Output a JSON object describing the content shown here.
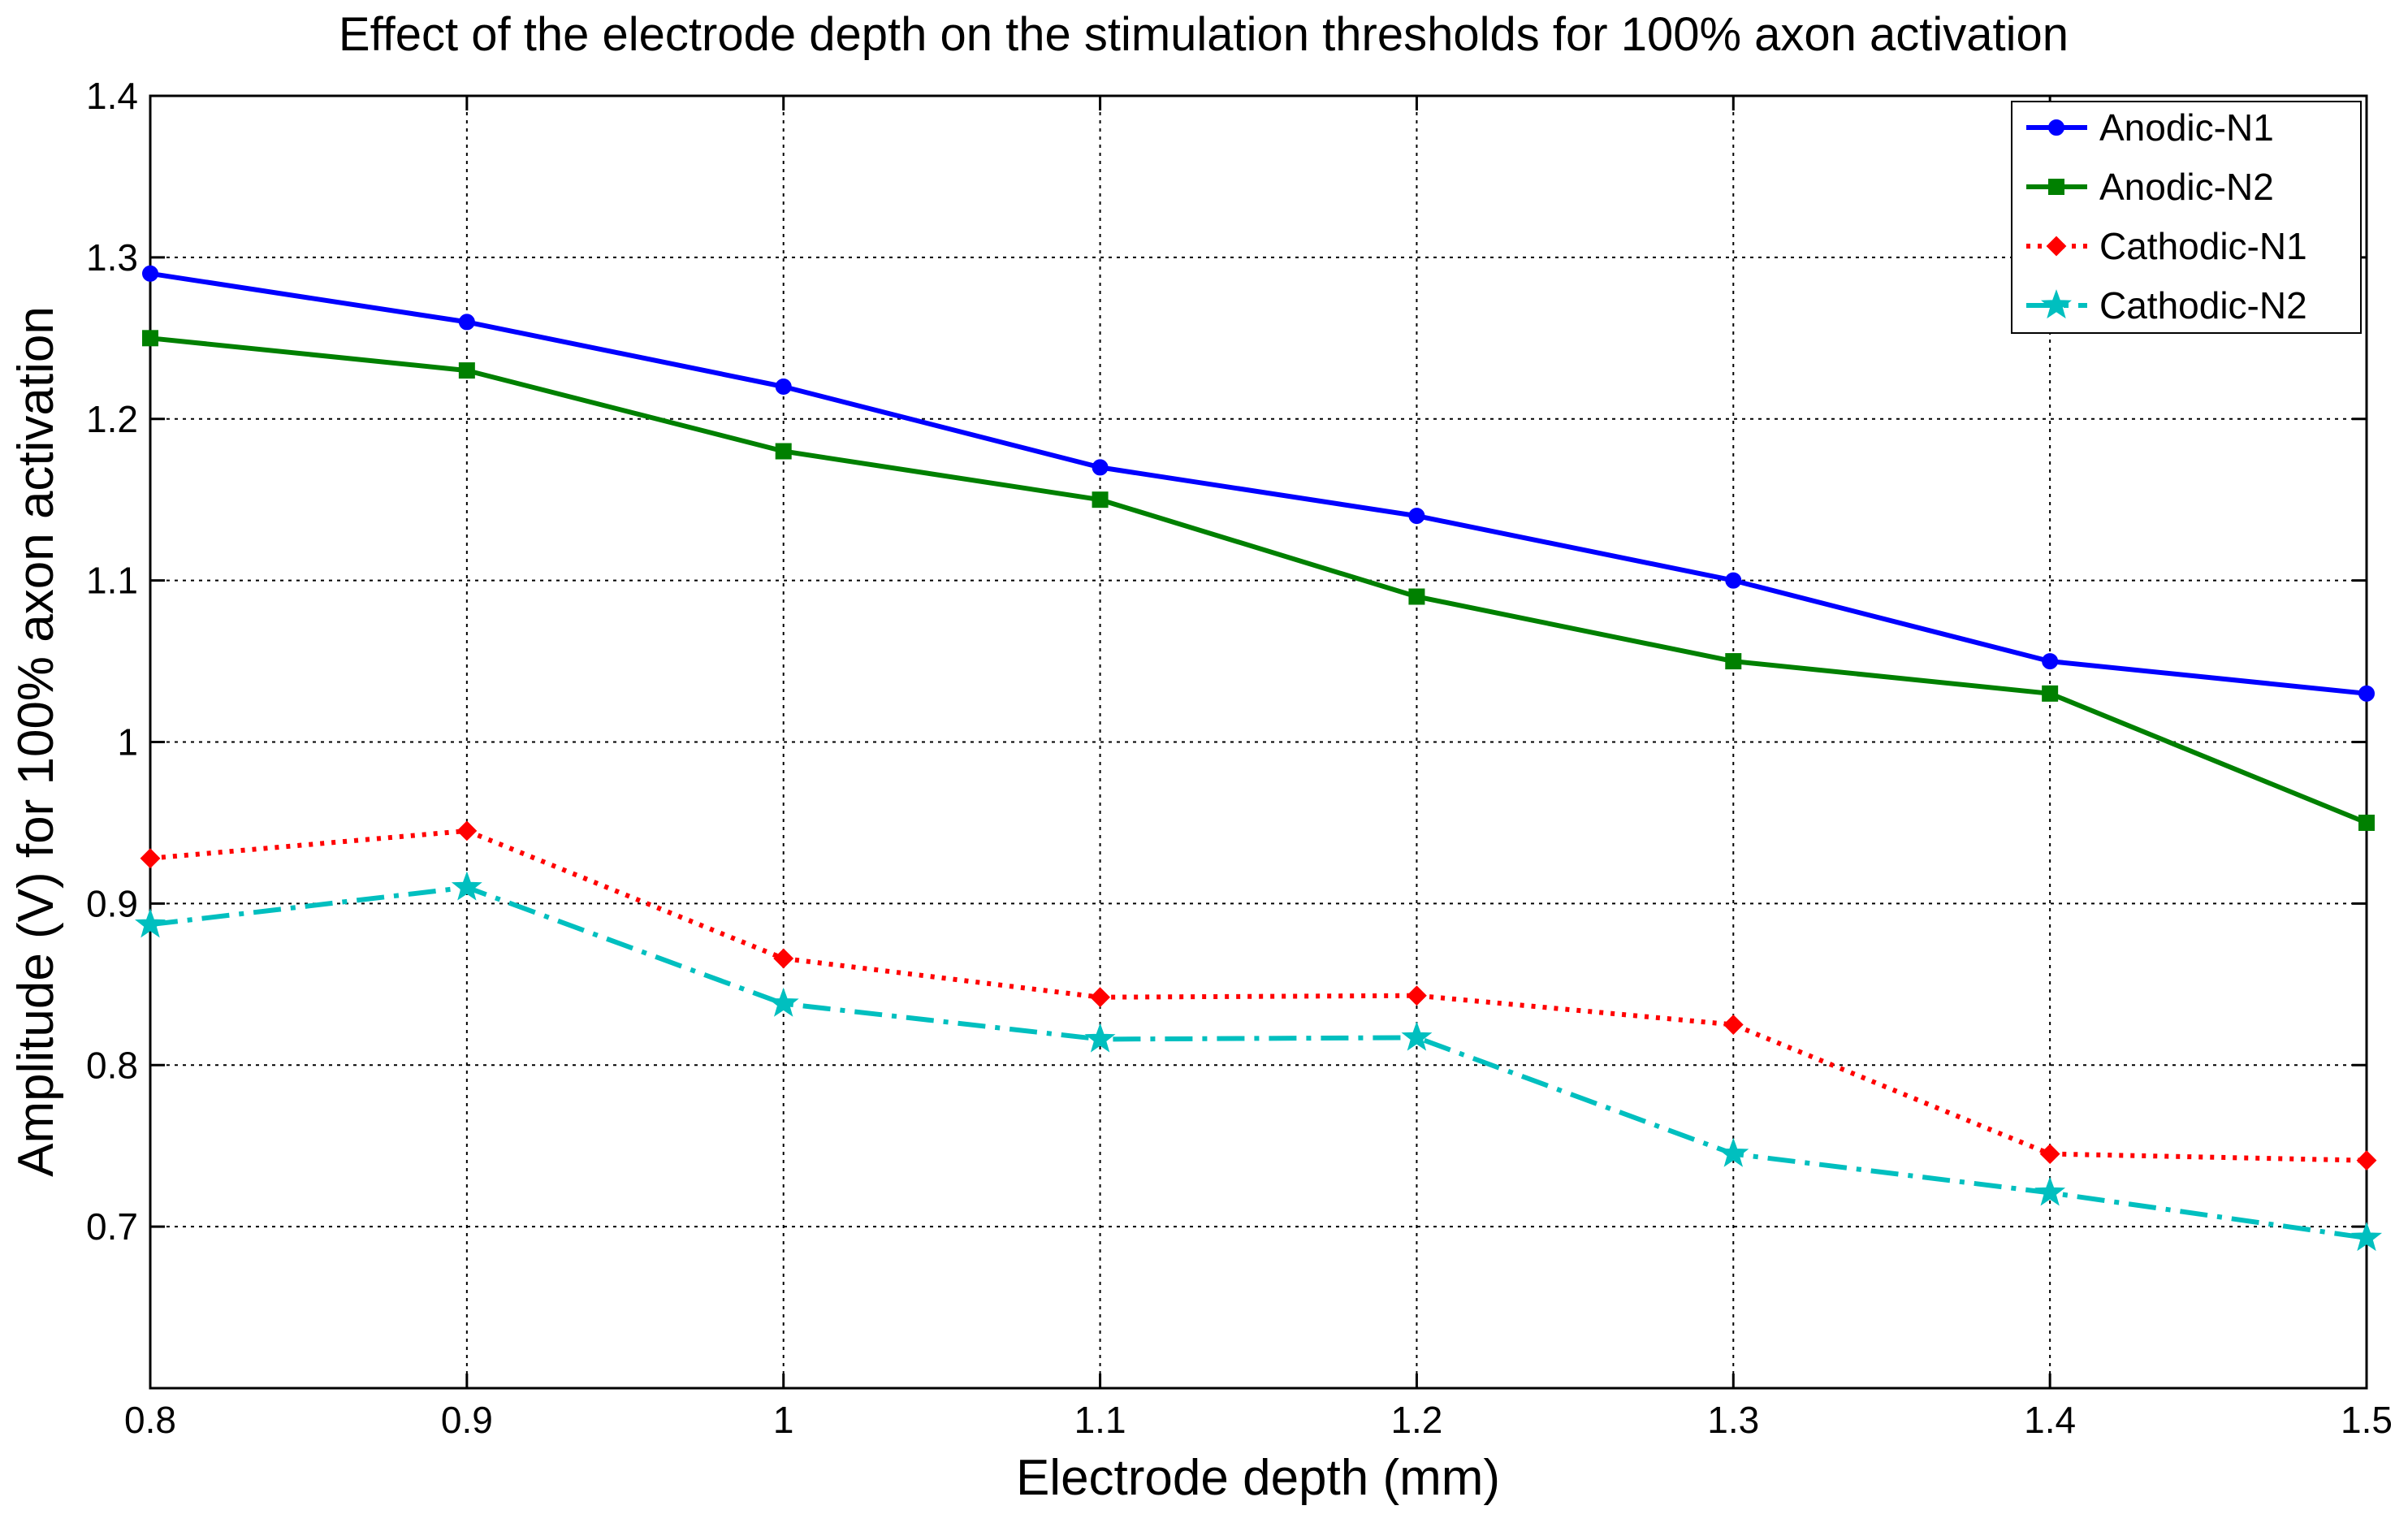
{
  "chart_data": {
    "type": "line",
    "title": "Effect of the electrode depth on the stimulation thresholds for 100% axon activation",
    "xlabel": "Electrode depth (mm)",
    "ylabel": "Amplitude (V) for 100% axon activation",
    "xlim": [
      0.8,
      1.5
    ],
    "ylim": [
      0.6,
      1.4
    ],
    "grid": true,
    "legend_position": "top-right",
    "x": [
      0.8,
      0.9,
      1.0,
      1.1,
      1.2,
      1.3,
      1.4,
      1.5
    ],
    "x_tick_labels": [
      "0.8",
      "0.9",
      "1",
      "1.1",
      "1.2",
      "1.3",
      "1.4",
      "1.5"
    ],
    "y_tick_values": [
      0.7,
      0.8,
      0.9,
      1.0,
      1.1,
      1.2,
      1.3,
      1.4
    ],
    "y_tick_labels": [
      "0.7",
      "0.8",
      "0.9",
      "1",
      "1.1",
      "1.2",
      "1.3",
      "1.4"
    ],
    "series": [
      {
        "name": "Anodic-N1",
        "color": "#0000ff",
        "marker": "circle",
        "line_style": "solid",
        "values": [
          1.29,
          1.26,
          1.22,
          1.17,
          1.14,
          1.1,
          1.05,
          1.03
        ]
      },
      {
        "name": "Anodic-N2",
        "color": "#008000",
        "marker": "square",
        "line_style": "solid",
        "values": [
          1.25,
          1.23,
          1.18,
          1.15,
          1.09,
          1.05,
          1.03,
          0.95
        ]
      },
      {
        "name": "Cathodic-N1",
        "color": "#ff0000",
        "marker": "diamond",
        "line_style": "dotted",
        "values": [
          0.928,
          0.945,
          0.866,
          0.842,
          0.843,
          0.825,
          0.745,
          0.741
        ]
      },
      {
        "name": "Cathodic-N2",
        "color": "#00bfbf",
        "marker": "star",
        "line_style": "dashdot",
        "values": [
          0.887,
          0.91,
          0.838,
          0.816,
          0.817,
          0.745,
          0.721,
          0.693
        ]
      }
    ]
  }
}
